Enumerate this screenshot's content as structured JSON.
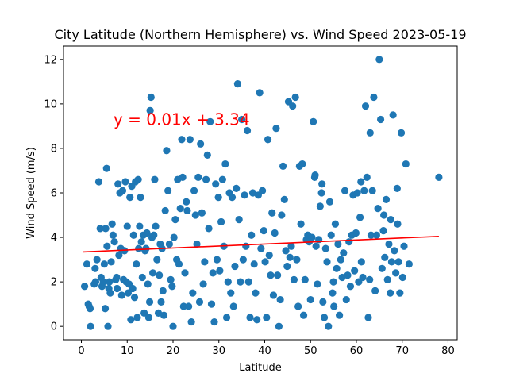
{
  "chart_data": {
    "type": "scatter",
    "title": "City Latitude (Northern Hemisphere) vs. Wind Speed 2023-05-19",
    "xlabel": "Latitude",
    "ylabel": "Wind Speed (m/s)",
    "xlim": [
      -3.9,
      82.0
    ],
    "ylim": [
      -0.6,
      12.6
    ],
    "xticks": [
      0,
      10,
      20,
      30,
      40,
      50,
      60,
      70,
      80
    ],
    "yticks": [
      0,
      2,
      4,
      6,
      8,
      10,
      12
    ],
    "grid": false,
    "marker_color": "#1f77b4",
    "regression": {
      "label": "y = 0.01x + 3.34",
      "slope": 0.00905,
      "intercept": 3.34,
      "x_start": 0.3,
      "x_end": 78.0,
      "color": "#ff0000",
      "label_x": 7,
      "label_y": 9.05
    },
    "points": [
      [
        1.5,
        1.0
      ],
      [
        1.7,
        0.9
      ],
      [
        2.0,
        0.0
      ],
      [
        1.2,
        2.8
      ],
      [
        1.9,
        0.8
      ],
      [
        0.7,
        1.8
      ],
      [
        2.8,
        1.9
      ],
      [
        3.0,
        2.6
      ],
      [
        3.1,
        2.0
      ],
      [
        3.4,
        3.0
      ],
      [
        3.8,
        6.5
      ],
      [
        4.1,
        4.4
      ],
      [
        4.3,
        2.2
      ],
      [
        4.5,
        1.8
      ],
      [
        4.8,
        2.0
      ],
      [
        5.0,
        2.8
      ],
      [
        5.2,
        0.8
      ],
      [
        5.3,
        4.4
      ],
      [
        5.5,
        7.1
      ],
      [
        5.6,
        3.6
      ],
      [
        5.8,
        0.0
      ],
      [
        6.0,
        1.7
      ],
      [
        6.1,
        2.0
      ],
      [
        6.3,
        1.5
      ],
      [
        6.5,
        2.9
      ],
      [
        6.7,
        4.6
      ],
      [
        6.9,
        4.1
      ],
      [
        7.2,
        3.8
      ],
      [
        7.5,
        2.1
      ],
      [
        7.7,
        2.2
      ],
      [
        7.8,
        1.7
      ],
      [
        8.0,
        6.4
      ],
      [
        8.2,
        3.2
      ],
      [
        8.4,
        6.0
      ],
      [
        8.6,
        3.5
      ],
      [
        8.8,
        1.4
      ],
      [
        9.0,
        6.1
      ],
      [
        9.2,
        2.1
      ],
      [
        9.4,
        3.4
      ],
      [
        9.6,
        6.5
      ],
      [
        9.8,
        2.0
      ],
      [
        10.0,
        4.5
      ],
      [
        10.2,
        1.5
      ],
      [
        10.4,
        1.9
      ],
      [
        10.6,
        5.8
      ],
      [
        10.8,
        0.3
      ],
      [
        11.0,
        6.3
      ],
      [
        11.2,
        1.7
      ],
      [
        11.4,
        4.1
      ],
      [
        11.6,
        1.3
      ],
      [
        11.8,
        6.5
      ],
      [
        12.0,
        2.8
      ],
      [
        12.2,
        0.4
      ],
      [
        12.4,
        6.6
      ],
      [
        12.5,
        3.5
      ],
      [
        12.7,
        4.5
      ],
      [
        12.9,
        5.8
      ],
      [
        13.1,
        3.8
      ],
      [
        13.3,
        2.2
      ],
      [
        13.5,
        4.1
      ],
      [
        13.7,
        0.6
      ],
      [
        13.9,
        3.4
      ],
      [
        14.1,
        3.5
      ],
      [
        14.3,
        4.2
      ],
      [
        14.5,
        1.9
      ],
      [
        14.7,
        0.4
      ],
      [
        14.9,
        1.1
      ],
      [
        15.0,
        9.7
      ],
      [
        15.2,
        10.3
      ],
      [
        15.4,
        4.0
      ],
      [
        15.6,
        2.4
      ],
      [
        15.8,
        4.1
      ],
      [
        16.0,
        6.6
      ],
      [
        16.2,
        4.5
      ],
      [
        16.5,
        3.0
      ],
      [
        16.8,
        0.6
      ],
      [
        17.0,
        2.3
      ],
      [
        17.2,
        3.7
      ],
      [
        17.4,
        1.1
      ],
      [
        17.6,
        3.5
      ],
      [
        17.8,
        1.6
      ],
      [
        18.0,
        0.5
      ],
      [
        18.3,
        5.2
      ],
      [
        18.6,
        7.9
      ],
      [
        18.9,
        6.1
      ],
      [
        19.2,
        3.7
      ],
      [
        19.5,
        2.1
      ],
      [
        19.8,
        1.8
      ],
      [
        20.0,
        0.0
      ],
      [
        20.2,
        4.0
      ],
      [
        20.5,
        4.8
      ],
      [
        20.8,
        3.0
      ],
      [
        21.0,
        6.6
      ],
      [
        21.3,
        2.8
      ],
      [
        21.6,
        5.3
      ],
      [
        21.9,
        8.4
      ],
      [
        22.1,
        6.7
      ],
      [
        22.3,
        0.9
      ],
      [
        22.6,
        2.4
      ],
      [
        22.9,
        5.6
      ],
      [
        23.1,
        5.2
      ],
      [
        23.4,
        0.9
      ],
      [
        23.7,
        8.4
      ],
      [
        24.0,
        0.2
      ],
      [
        24.3,
        1.5
      ],
      [
        24.6,
        6.1
      ],
      [
        24.9,
        5.0
      ],
      [
        25.2,
        3.7
      ],
      [
        25.5,
        6.7
      ],
      [
        25.8,
        1.1
      ],
      [
        26.0,
        8.2
      ],
      [
        26.3,
        5.1
      ],
      [
        26.6,
        1.9
      ],
      [
        26.9,
        2.9
      ],
      [
        27.2,
        6.6
      ],
      [
        27.5,
        7.7
      ],
      [
        27.8,
        4.4
      ],
      [
        28.1,
        9.2
      ],
      [
        28.4,
        1.0
      ],
      [
        28.7,
        2.4
      ],
      [
        29.0,
        0.2
      ],
      [
        29.3,
        6.4
      ],
      [
        29.6,
        3.0
      ],
      [
        29.9,
        5.8
      ],
      [
        30.2,
        2.5
      ],
      [
        30.5,
        4.7
      ],
      [
        30.8,
        6.6
      ],
      [
        31.1,
        3.6
      ],
      [
        31.4,
        7.3
      ],
      [
        31.7,
        0.4
      ],
      [
        32.0,
        2.0
      ],
      [
        32.3,
        6.0
      ],
      [
        32.6,
        1.5
      ],
      [
        32.9,
        5.8
      ],
      [
        33.2,
        0.9
      ],
      [
        33.5,
        2.7
      ],
      [
        33.8,
        6.2
      ],
      [
        34.1,
        10.9
      ],
      [
        34.4,
        4.8
      ],
      [
        34.7,
        2.0
      ],
      [
        35.0,
        9.3
      ],
      [
        35.3,
        3.0
      ],
      [
        35.6,
        5.9
      ],
      [
        35.9,
        3.6
      ],
      [
        36.2,
        8.8
      ],
      [
        36.5,
        2.0
      ],
      [
        36.8,
        0.4
      ],
      [
        37.1,
        4.1
      ],
      [
        37.4,
        6.0
      ],
      [
        37.7,
        2.8
      ],
      [
        38.0,
        1.5
      ],
      [
        38.3,
        0.3
      ],
      [
        38.6,
        5.9
      ],
      [
        38.9,
        10.5
      ],
      [
        39.2,
        3.5
      ],
      [
        39.5,
        6.1
      ],
      [
        39.8,
        4.3
      ],
      [
        40.1,
        2.9
      ],
      [
        40.4,
        0.4
      ],
      [
        40.7,
        8.4
      ],
      [
        41.0,
        3.2
      ],
      [
        41.3,
        2.3
      ],
      [
        41.6,
        5.1
      ],
      [
        41.9,
        1.4
      ],
      [
        42.2,
        4.2
      ],
      [
        42.5,
        8.9
      ],
      [
        42.8,
        2.3
      ],
      [
        43.1,
        0.0
      ],
      [
        43.4,
        1.2
      ],
      [
        43.7,
        5.0
      ],
      [
        44.0,
        7.2
      ],
      [
        44.3,
        5.7
      ],
      [
        44.6,
        3.4
      ],
      [
        44.9,
        2.7
      ],
      [
        45.2,
        10.1
      ],
      [
        45.5,
        3.1
      ],
      [
        45.8,
        3.6
      ],
      [
        46.1,
        9.9
      ],
      [
        46.4,
        2.1
      ],
      [
        46.7,
        10.3
      ],
      [
        47.0,
        3.0
      ],
      [
        47.3,
        0.9
      ],
      [
        47.6,
        7.2
      ],
      [
        47.9,
        4.6
      ],
      [
        48.2,
        7.3
      ],
      [
        48.5,
        0.5
      ],
      [
        48.8,
        2.1
      ],
      [
        49.1,
        3.9
      ],
      [
        49.4,
        4.1
      ],
      [
        49.7,
        3.8
      ],
      [
        50.0,
        1.2
      ],
      [
        50.3,
        4.0
      ],
      [
        50.6,
        9.2
      ],
      [
        50.9,
        6.7
      ],
      [
        51.2,
        3.6
      ],
      [
        51.5,
        1.9
      ],
      [
        51.8,
        3.9
      ],
      [
        52.1,
        5.4
      ],
      [
        52.4,
        6.0
      ],
      [
        52.7,
        1.1
      ],
      [
        53.0,
        0.4
      ],
      [
        53.3,
        3.5
      ],
      [
        53.6,
        2.9
      ],
      [
        53.9,
        0.0
      ],
      [
        54.2,
        5.6
      ],
      [
        54.5,
        4.1
      ],
      [
        54.8,
        1.5
      ],
      [
        55.1,
        0.9
      ],
      [
        55.4,
        4.6
      ],
      [
        55.7,
        2.6
      ],
      [
        56.0,
        3.7
      ],
      [
        56.3,
        0.5
      ],
      [
        56.6,
        3.0
      ],
      [
        56.9,
        2.2
      ],
      [
        57.2,
        3.3
      ],
      [
        57.5,
        6.1
      ],
      [
        57.8,
        1.2
      ],
      [
        58.1,
        2.3
      ],
      [
        58.4,
        3.8
      ],
      [
        58.7,
        1.8
      ],
      [
        59.0,
        4.1
      ],
      [
        59.3,
        5.9
      ],
      [
        59.6,
        2.5
      ],
      [
        59.9,
        4.2
      ],
      [
        60.2,
        6.0
      ],
      [
        60.5,
        2.0
      ],
      [
        60.8,
        4.9
      ],
      [
        61.1,
        2.9
      ],
      [
        61.4,
        2.2
      ],
      [
        61.7,
        6.1
      ],
      [
        62.0,
        9.9
      ],
      [
        62.3,
        6.7
      ],
      [
        62.6,
        0.4
      ],
      [
        62.9,
        2.1
      ],
      [
        63.2,
        4.1
      ],
      [
        63.5,
        6.1
      ],
      [
        63.8,
        10.3
      ],
      [
        64.1,
        1.6
      ],
      [
        64.4,
        4.1
      ],
      [
        64.7,
        5.3
      ],
      [
        65.0,
        12.0
      ],
      [
        65.3,
        9.3
      ],
      [
        65.6,
        2.6
      ],
      [
        65.9,
        4.3
      ],
      [
        66.2,
        3.1
      ],
      [
        66.5,
        5.7
      ],
      [
        66.8,
        2.1
      ],
      [
        67.1,
        3.7
      ],
      [
        67.4,
        1.5
      ],
      [
        67.7,
        2.9
      ],
      [
        68.0,
        9.5
      ],
      [
        68.3,
        3.4
      ],
      [
        68.6,
        2.4
      ],
      [
        68.9,
        6.2
      ],
      [
        69.2,
        2.9
      ],
      [
        69.5,
        1.5
      ],
      [
        69.8,
        8.7
      ],
      [
        70.1,
        2.2
      ],
      [
        70.4,
        3.6
      ],
      [
        70.8,
        7.3
      ],
      [
        71.5,
        2.8
      ],
      [
        78.0,
        6.7
      ],
      [
        63.0,
        8.7
      ],
      [
        61.0,
        6.5
      ],
      [
        66.0,
        5.0
      ],
      [
        67.5,
        4.8
      ],
      [
        69.0,
        4.6
      ],
      [
        51.0,
        6.8
      ],
      [
        52.5,
        6.4
      ],
      [
        55.0,
        2.0
      ]
    ]
  }
}
